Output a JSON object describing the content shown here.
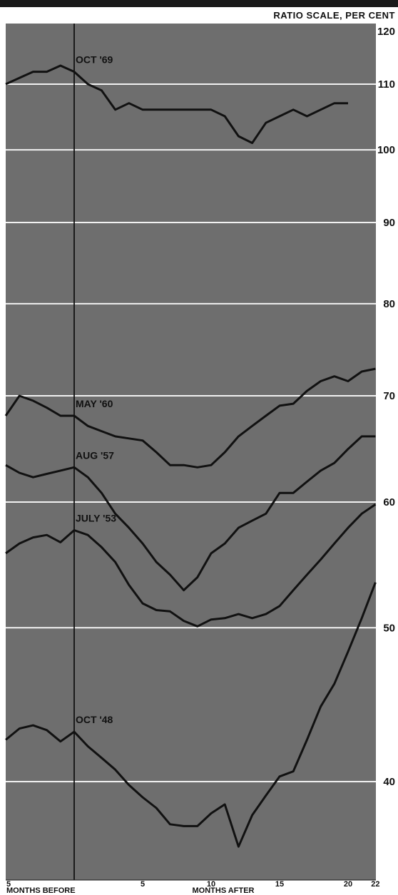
{
  "chart_data": {
    "type": "line",
    "title": "RATIO SCALE, PER CENT",
    "y_scale": "log",
    "ylim": [
      35,
      120
    ],
    "yticks": [
      120,
      110,
      100,
      90,
      80,
      70,
      60,
      50,
      40
    ],
    "xlim": [
      -5,
      22
    ],
    "xticks": [
      {
        "value": -5,
        "label": "5"
      },
      {
        "value": 5,
        "label": "5"
      },
      {
        "value": 10,
        "label": "10"
      },
      {
        "value": 15,
        "label": "15"
      },
      {
        "value": 20,
        "label": "20"
      },
      {
        "value": 22,
        "label": "22"
      }
    ],
    "xlabel_left": "MONTHS BEFORE",
    "xlabel_right": "MONTHS AFTER",
    "reference_month": 0,
    "grid": true,
    "series": [
      {
        "name": "OCT '69",
        "x": [
          -5,
          -4,
          -3,
          -2,
          -1,
          0,
          1,
          2,
          3,
          4,
          5,
          6,
          7,
          8,
          9,
          10,
          11,
          12,
          13,
          14,
          15,
          16,
          17,
          18,
          19,
          20
        ],
        "values": [
          110,
          111,
          112,
          112,
          113,
          112,
          110,
          109,
          106,
          107,
          106,
          106,
          106,
          106,
          106,
          106,
          105,
          102,
          101,
          104,
          105,
          106,
          105,
          106,
          107,
          107
        ]
      },
      {
        "name": "MAY '60",
        "x": [
          -5,
          -4,
          -3,
          -2,
          -1,
          0,
          1,
          2,
          3,
          4,
          5,
          6,
          7,
          8,
          9,
          10,
          11,
          12,
          13,
          14,
          15,
          16,
          17,
          18,
          19,
          20,
          21,
          22
        ],
        "values": [
          68,
          70,
          69.5,
          68.8,
          68,
          68,
          67,
          66.5,
          66,
          65.8,
          65.6,
          64.5,
          63.3,
          63.3,
          63.1,
          63.3,
          64.5,
          66,
          67,
          68,
          69,
          69.2,
          70.5,
          71.5,
          72,
          71.5,
          72.5,
          72.8
        ]
      },
      {
        "name": "AUG '57",
        "x": [
          -5,
          -4,
          -3,
          -2,
          -1,
          0,
          1,
          2,
          3,
          4,
          5,
          6,
          7,
          8,
          9,
          10,
          11,
          12,
          13,
          14,
          15,
          16,
          17,
          18,
          19,
          20,
          21,
          22
        ],
        "values": [
          63.3,
          62.6,
          62.2,
          62.5,
          62.8,
          63.1,
          62.2,
          60.8,
          59,
          57.8,
          56.5,
          55,
          54,
          52.8,
          53.8,
          55.7,
          56.5,
          57.8,
          58.4,
          59,
          60.8,
          60.8,
          61.8,
          62.8,
          63.5,
          64.8,
          66,
          66
        ]
      },
      {
        "name": "JULY '53",
        "x": [
          -5,
          -4,
          -3,
          -2,
          -1,
          0,
          1,
          2,
          3,
          4,
          5,
          6,
          7,
          8,
          9,
          10,
          11,
          12,
          13,
          14,
          15,
          16,
          17,
          18,
          19,
          20,
          21,
          22
        ],
        "values": [
          55.7,
          56.5,
          57,
          57.2,
          56.6,
          57.6,
          57.2,
          56.2,
          55,
          53.2,
          51.8,
          51.3,
          51.2,
          50.5,
          50.1,
          50.6,
          50.7,
          51,
          50.7,
          51,
          51.6,
          52.8,
          54,
          55.2,
          56.5,
          57.8,
          59,
          59.8
        ]
      },
      {
        "name": "OCT '48",
        "x": [
          -5,
          -4,
          -3,
          -2,
          -1,
          0,
          1,
          2,
          3,
          4,
          5,
          6,
          7,
          8,
          9,
          10,
          11,
          12,
          13,
          14,
          15,
          16,
          17,
          18,
          19,
          20,
          21,
          22
        ],
        "values": [
          42.5,
          43.2,
          43.4,
          43.1,
          42.4,
          43,
          42.1,
          41.4,
          40.7,
          39.8,
          39.1,
          38.5,
          37.6,
          37.5,
          37.5,
          38.2,
          38.7,
          36.4,
          38.1,
          39.2,
          40.3,
          40.6,
          42.5,
          44.6,
          46.1,
          48.3,
          50.7,
          53.4
        ]
      }
    ]
  }
}
